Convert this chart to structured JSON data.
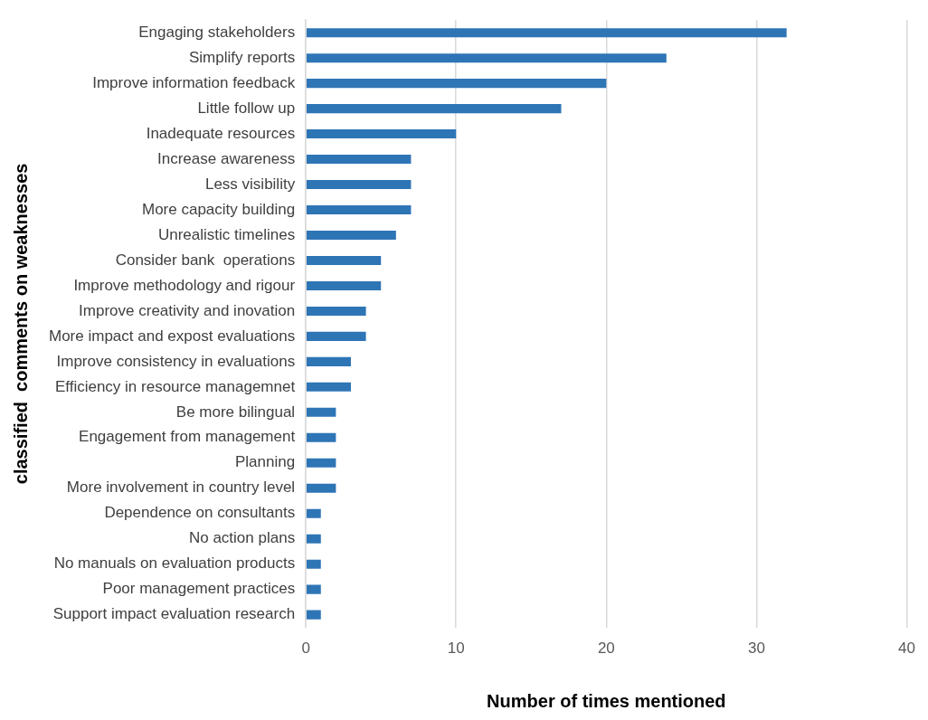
{
  "chart_data": {
    "type": "bar",
    "orientation": "horizontal",
    "categories": [
      "Engaging stakeholders",
      "Simplify reports",
      "Improve information feedback",
      "Little follow up",
      "Inadequate resources",
      "Increase awareness",
      "Less visibility",
      "More capacity building",
      "Unrealistic timelines",
      "Consider bank  operations",
      "Improve methodology and rigour",
      "Improve creativity and inovation",
      "More impact and expost evaluations",
      "Improve consistency in evaluations",
      "Efficiency in resource managemnet",
      "Be more bilingual",
      "Engagement from management",
      "Planning",
      "More involvement in country level",
      "Dependence on consultants",
      "No action plans",
      "No manuals on evaluation products",
      "Poor management practices",
      "Support impact evaluation research"
    ],
    "values": [
      32,
      24,
      20,
      17,
      10,
      7,
      7,
      7,
      6,
      5,
      5,
      4,
      4,
      3,
      3,
      2,
      2,
      2,
      2,
      1,
      1,
      1,
      1,
      1
    ],
    "color": "#2e75b6",
    "xlabel": "Number of times mentioned",
    "ylabel": "classified  comments on weaknesses",
    "xlim": [
      0,
      40
    ],
    "xticks": [
      0,
      10,
      20,
      30,
      40
    ],
    "grid": "x"
  }
}
